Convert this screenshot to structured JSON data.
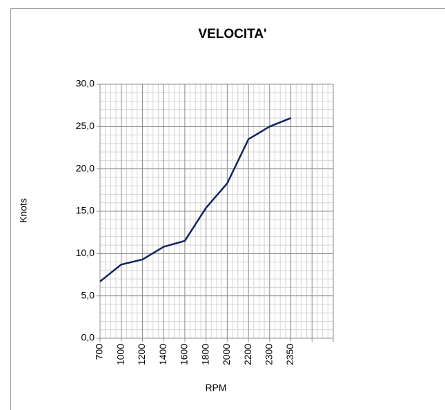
{
  "chart_data": {
    "type": "line",
    "title": "VELOCITA'",
    "x_label": "RPM",
    "y_label": "Knots",
    "categories": [
      "700",
      "1000",
      "1200",
      "1400",
      "1600",
      "1800",
      "2000",
      "2200",
      "2300",
      "2350",
      null,
      null
    ],
    "series": [
      {
        "name": "Knots",
        "color": "#12235e",
        "values": [
          6.7,
          8.7,
          9.3,
          10.8,
          11.5,
          15.4,
          18.3,
          23.5,
          25.0,
          26.0,
          null,
          null
        ]
      }
    ],
    "ylim": [
      0,
      30
    ],
    "yticks": [
      {
        "value": 0,
        "label": "0,0"
      },
      {
        "value": 5,
        "label": "5,0"
      },
      {
        "value": 10,
        "label": "10,0"
      },
      {
        "value": 15,
        "label": "15,0"
      },
      {
        "value": 20,
        "label": "20,0"
      },
      {
        "value": 25,
        "label": "25,0"
      },
      {
        "value": 30,
        "label": "30,0"
      }
    ],
    "grid": true
  }
}
